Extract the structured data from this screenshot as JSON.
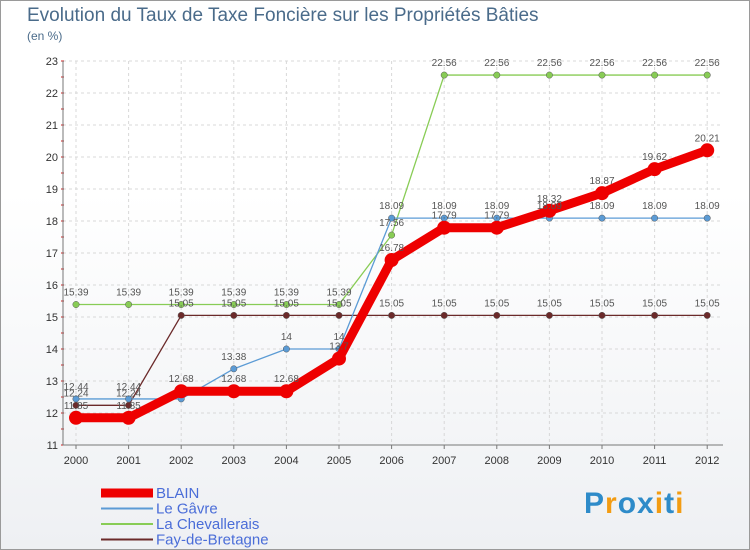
{
  "chart_data": {
    "type": "line",
    "title": "Evolution du Taux de Taxe Foncière sur les Propriétés Bâties",
    "ylabel": "(en %)",
    "xlabel": "",
    "categories": [
      "2000",
      "2001",
      "2002",
      "2003",
      "2004",
      "2005",
      "2006",
      "2007",
      "2008",
      "2009",
      "2010",
      "2011",
      "2012"
    ],
    "ylim": [
      11,
      23
    ],
    "yticks": [
      11,
      12,
      13,
      14,
      15,
      16,
      17,
      18,
      19,
      20,
      21,
      22,
      23
    ],
    "grid": true,
    "legend_position": "bottom-left",
    "series": [
      {
        "name": "Fay-de-Bretagne",
        "color": "#6b2a2a",
        "values": [
          12.24,
          12.24,
          15.05,
          15.05,
          15.05,
          15.05,
          15.05,
          15.05,
          15.05,
          15.05,
          15.05,
          15.05,
          15.05
        ],
        "labels": [
          "12.24",
          "12.24",
          "15.05",
          "15.05",
          "15.05",
          "15.05",
          "15.05",
          "15.05",
          "15.05",
          "15.05",
          "15.05",
          "15.05",
          "15.05"
        ]
      },
      {
        "name": "La Chevallerais",
        "color": "#88cc55",
        "values": [
          15.39,
          15.39,
          15.39,
          15.39,
          15.39,
          15.39,
          17.56,
          22.56,
          22.56,
          22.56,
          22.56,
          22.56,
          22.56
        ],
        "labels": [
          "15.39",
          "15.39",
          "15.39",
          "15.39",
          "15.39",
          "15.39",
          "17.56",
          "22.56",
          "22.56",
          "22.56",
          "22.56",
          "22.56",
          "22.56"
        ]
      },
      {
        "name": "Le Gâvre",
        "color": "#5b9bd5",
        "values": [
          12.44,
          12.44,
          12.44,
          13.38,
          14,
          14,
          18.09,
          18.09,
          18.09,
          18.09,
          18.09,
          18.09,
          18.09
        ],
        "labels": [
          "12.44",
          "12.44",
          "",
          "13.38",
          "14",
          "14",
          "18.09",
          "18.09",
          "18.09",
          "18.09",
          "18.09",
          "18.09",
          "18.09"
        ]
      },
      {
        "name": "BLAIN",
        "color": "#ee0000",
        "values": [
          11.85,
          11.85,
          12.68,
          12.68,
          12.68,
          13.7,
          16.78,
          17.79,
          17.79,
          18.32,
          18.87,
          19.62,
          20.21
        ],
        "labels": [
          "11.85",
          "11.85",
          "12.68",
          "12.68",
          "12.68",
          "13.7",
          "16.78",
          "17.79",
          "17.79",
          "18.32",
          "18.87",
          "19.62",
          "20.21"
        ]
      }
    ],
    "legend": [
      "BLAIN",
      "Le Gâvre",
      "La Chevallerais",
      "Fay-de-Bretagne"
    ]
  },
  "logo": {
    "letters": [
      "P",
      "r",
      "o",
      "x",
      "i",
      "t",
      "i"
    ],
    "colors": [
      "#2e8bc9",
      "#f39c12",
      "#2e8bc9",
      "#2e8bc9",
      "#f39c12",
      "#2e8bc9",
      "#f39c12"
    ]
  }
}
